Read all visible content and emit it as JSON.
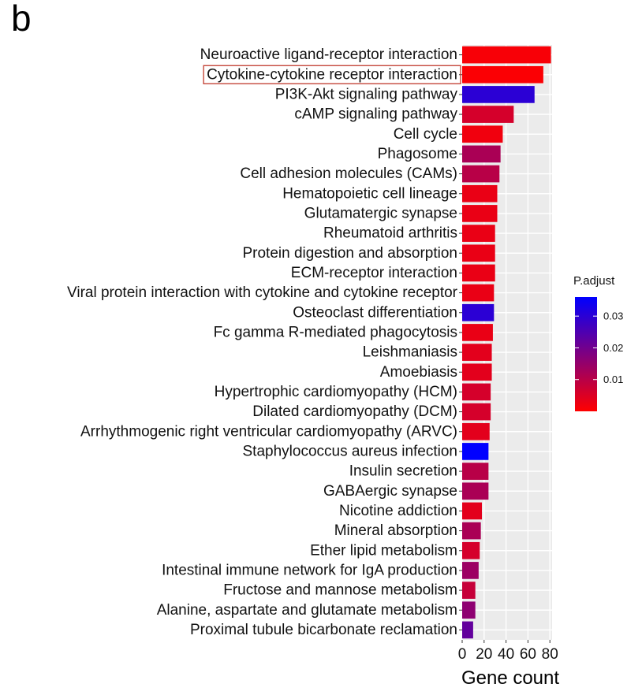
{
  "panel_label": "b",
  "chart_data": {
    "type": "bar",
    "orientation": "horizontal",
    "xlabel": "Gene count",
    "ylabel": "",
    "xlim": [
      0,
      82
    ],
    "xticks": [
      0,
      20,
      40,
      60,
      80
    ],
    "grid": true,
    "highlighted_category": "Cytokine-cytokine receptor interaction",
    "categories": [
      "Neuroactive ligand-receptor interaction",
      "Cytokine-cytokine receptor interaction",
      "PI3K-Akt signaling pathway",
      "cAMP signaling pathway",
      "Cell cycle",
      "Phagosome",
      "Cell adhesion molecules (CAMs)",
      "Hematopoietic cell lineage",
      "Glutamatergic synapse",
      "Rheumatoid arthritis",
      "Protein digestion and absorption",
      "ECM-receptor interaction",
      "Viral protein interaction with cytokine and cytokine receptor",
      "Osteoclast differentiation",
      "Fc gamma R-mediated phagocytosis",
      "Leishmaniasis",
      "Amoebiasis",
      "Hypertrophic cardiomyopathy (HCM)",
      "Dilated cardiomyopathy (DCM)",
      "Arrhythmogenic right ventricular cardiomyopathy (ARVC)",
      "Staphylococcus aureus infection",
      "Insulin secretion",
      "GABAergic synapse",
      "Nicotine addiction",
      "Mineral absorption",
      "Ether lipid metabolism",
      "Intestinal immune network for IgA production",
      "Fructose and mannose metabolism",
      "Alanine, aspartate and glutamate metabolism",
      "Proximal tubule bicarbonate reclamation"
    ],
    "values": [
      81,
      74,
      66,
      47,
      37,
      35,
      34,
      32,
      32,
      30,
      30,
      30,
      29,
      29,
      28,
      27,
      27,
      26,
      26,
      25,
      24,
      24,
      24,
      18,
      17,
      16,
      15,
      12,
      12,
      10
    ],
    "p_adjust": [
      0.001,
      0.0005,
      0.03,
      0.006,
      0.002,
      0.012,
      0.01,
      0.003,
      0.003,
      0.003,
      0.003,
      0.003,
      0.003,
      0.03,
      0.003,
      0.004,
      0.004,
      0.006,
      0.006,
      0.004,
      0.036,
      0.01,
      0.012,
      0.004,
      0.012,
      0.006,
      0.014,
      0.008,
      0.016,
      0.022
    ],
    "legend": {
      "title": "P.adjust",
      "position": "right",
      "range": [
        0.0,
        0.036
      ],
      "ticks": [
        0.01,
        0.02,
        0.03
      ],
      "tick_labels": [
        "0.01",
        "0.02",
        "0.03"
      ],
      "color_low": "#ff0000",
      "color_high": "#0000ff"
    },
    "highlight_box_color": "#c0392b"
  }
}
